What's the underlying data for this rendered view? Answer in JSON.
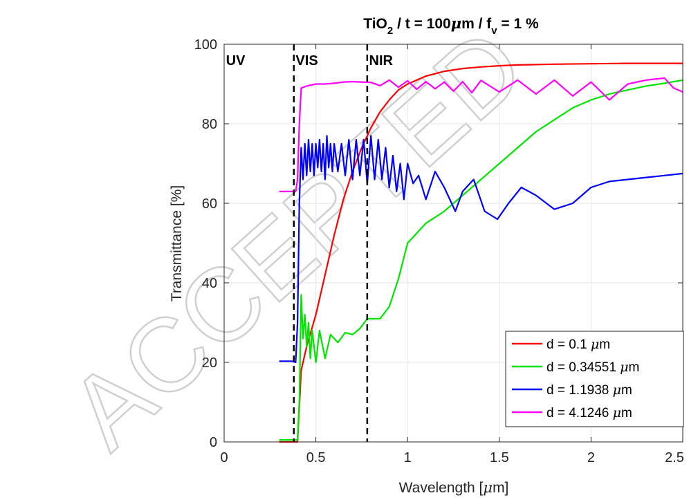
{
  "chart_data": {
    "type": "line",
    "title": {
      "main": "TiO",
      "sub1": "2",
      "mid": " / t = 100",
      "mu": "μ",
      "mid2": "m / f",
      "sub2": "v",
      "tail": " = 1 %"
    },
    "xlabel": {
      "pre": "Wavelength [",
      "mu": "μ",
      "post": "m]"
    },
    "ylabel": "Transmittance [%]",
    "xlim": [
      0,
      2.5
    ],
    "ylim": [
      0,
      100
    ],
    "xticks": [
      0,
      0.5,
      1,
      1.5,
      2,
      2.5
    ],
    "xtick_labels": [
      "0",
      "0.5",
      "1",
      "1.5",
      "2",
      "2.5"
    ],
    "yticks": [
      0,
      20,
      40,
      60,
      80,
      100
    ],
    "ytick_labels": [
      "0",
      "20",
      "40",
      "60",
      "80",
      "100"
    ],
    "grid": true,
    "legend_position": "bottom-right",
    "regions": [
      {
        "label": "UV",
        "x": 0.01
      },
      {
        "label": "VIS",
        "x": 0.39
      },
      {
        "label": "NIR",
        "x": 0.79
      }
    ],
    "vlines": [
      0.38,
      0.78
    ],
    "series": [
      {
        "name": "d = 0.1 μm",
        "legend_pre": "d = 0.1 ",
        "mu": "μ",
        "legend_post": "m",
        "color": "#ff0000",
        "x": [
          0.3,
          0.37,
          0.4,
          0.42,
          0.45,
          0.5,
          0.55,
          0.6,
          0.65,
          0.7,
          0.75,
          0.8,
          0.85,
          0.9,
          0.95,
          1.0,
          1.1,
          1.2,
          1.3,
          1.4,
          1.5,
          1.6,
          1.8,
          2.0,
          2.2,
          2.5
        ],
        "y": [
          0,
          0,
          0,
          18,
          24,
          32,
          42,
          52,
          61,
          68,
          74,
          79,
          83,
          86,
          88.5,
          90,
          92,
          93.2,
          93.9,
          94.3,
          94.6,
          94.8,
          95,
          95.1,
          95.2,
          95.2
        ]
      },
      {
        "name": "d = 0.34551 μm",
        "legend_pre": "d = 0.34551 ",
        "mu": "μ",
        "legend_post": "m",
        "color": "#00e600",
        "x": [
          0.3,
          0.37,
          0.4,
          0.41,
          0.42,
          0.43,
          0.44,
          0.45,
          0.46,
          0.47,
          0.48,
          0.5,
          0.52,
          0.55,
          0.58,
          0.62,
          0.66,
          0.7,
          0.74,
          0.78,
          0.8,
          0.85,
          0.9,
          0.95,
          1.0,
          1.1,
          1.2,
          1.3,
          1.4,
          1.5,
          1.6,
          1.7,
          1.8,
          1.9,
          2.0,
          2.1,
          2.2,
          2.3,
          2.4,
          2.5
        ],
        "y": [
          0.5,
          0.5,
          0.5,
          10,
          37,
          26,
          32,
          24,
          30,
          21,
          28,
          20,
          28,
          21,
          27,
          25,
          27.5,
          27,
          28.5,
          31,
          31,
          31,
          34,
          41,
          50,
          55,
          58,
          62,
          66,
          70,
          74,
          78,
          81,
          84,
          86,
          87.5,
          88.5,
          89.5,
          90.2,
          91
        ]
      },
      {
        "name": "d = 1.1938 μm",
        "legend_pre": "d = 1.1938 ",
        "mu": "μ",
        "legend_post": "m",
        "color": "#0000ff",
        "x": [
          0.3,
          0.37,
          0.39,
          0.4,
          0.41,
          0.42,
          0.43,
          0.44,
          0.45,
          0.46,
          0.47,
          0.48,
          0.49,
          0.5,
          0.51,
          0.52,
          0.53,
          0.54,
          0.55,
          0.56,
          0.57,
          0.58,
          0.59,
          0.6,
          0.62,
          0.64,
          0.66,
          0.68,
          0.7,
          0.72,
          0.74,
          0.76,
          0.78,
          0.8,
          0.82,
          0.84,
          0.86,
          0.88,
          0.9,
          0.92,
          0.94,
          0.96,
          0.98,
          1.0,
          1.03,
          1.06,
          1.1,
          1.15,
          1.2,
          1.26,
          1.3,
          1.36,
          1.42,
          1.49,
          1.55,
          1.62,
          1.7,
          1.8,
          1.9,
          2.0,
          2.1,
          2.2,
          2.3,
          2.4,
          2.5
        ],
        "y": [
          20.3,
          20.3,
          20,
          30,
          60,
          74,
          66,
          75,
          67,
          76,
          68,
          75,
          67,
          75,
          69,
          76,
          68,
          75,
          66,
          77,
          69,
          75,
          68,
          75,
          68,
          75,
          67,
          76,
          66,
          76,
          67,
          76,
          65,
          77,
          66,
          76,
          66,
          74,
          64,
          72,
          63,
          70,
          61,
          70,
          65,
          67,
          61,
          68,
          64,
          58,
          63,
          66,
          58,
          56,
          60,
          64,
          62,
          58.5,
          60,
          64,
          65.5,
          66,
          66.5,
          67,
          67.5
        ]
      },
      {
        "name": "d = 4.1246 μm",
        "legend_pre": "d = 4.1246 ",
        "mu": "μ",
        "legend_post": "m",
        "color": "#ff00ff",
        "x": [
          0.3,
          0.37,
          0.38,
          0.39,
          0.4,
          0.41,
          0.42,
          0.45,
          0.5,
          0.55,
          0.6,
          0.65,
          0.7,
          0.75,
          0.8,
          0.85,
          0.9,
          0.95,
          1.0,
          1.05,
          1.1,
          1.15,
          1.2,
          1.25,
          1.3,
          1.35,
          1.4,
          1.5,
          1.6,
          1.7,
          1.8,
          1.9,
          2.0,
          2.1,
          2.2,
          2.3,
          2.4,
          2.45,
          2.5
        ],
        "y": [
          63,
          63,
          63,
          63,
          66,
          80,
          89,
          89.5,
          90,
          90,
          90.2,
          90.5,
          90.6,
          90.5,
          90.4,
          89.6,
          91,
          89.2,
          90.8,
          88.7,
          90.6,
          88.8,
          90.5,
          88.2,
          90.6,
          87.8,
          90.9,
          88,
          91,
          87.5,
          91,
          87,
          90.5,
          86,
          90,
          91,
          91.5,
          89,
          88
        ]
      }
    ]
  }
}
